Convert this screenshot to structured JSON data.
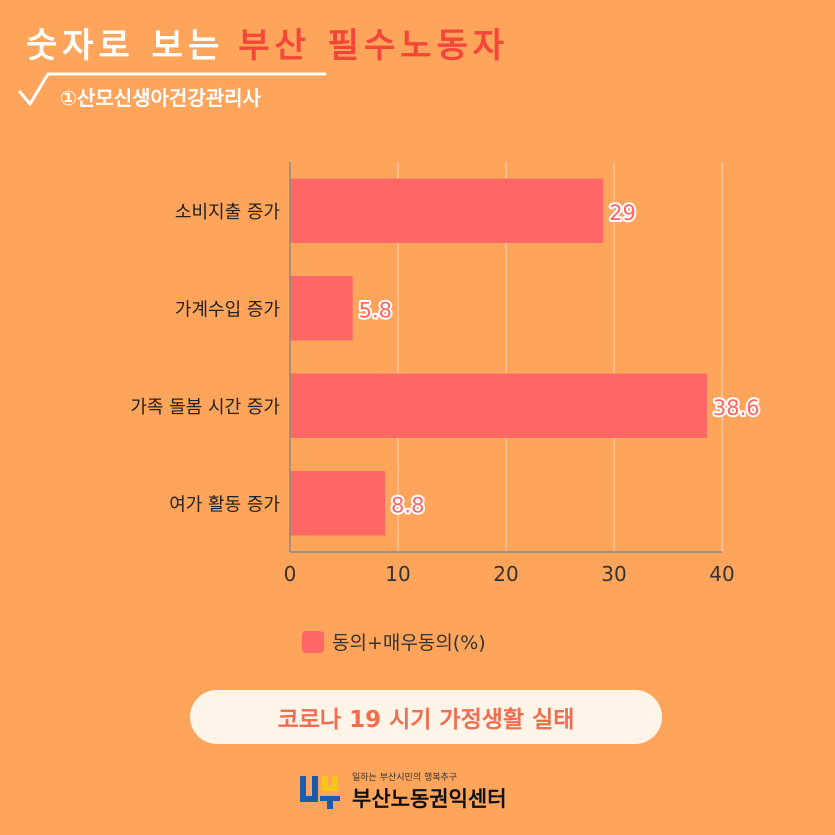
{
  "header": {
    "title_part1": "숫자로 보는",
    "title_part2": "부산 필수노동자",
    "subtitle": "①산모신생아건강관리사"
  },
  "colors": {
    "background": "#FFA45B",
    "bar": "#FF6666",
    "title_accent": "#F4473A",
    "pill_text": "#F26D4F"
  },
  "chart_data": {
    "type": "bar",
    "orientation": "horizontal",
    "categories": [
      "소비지출 증가",
      "가계수입 증가",
      "가족 돌봄 시간 증가",
      "여가 활동 증가"
    ],
    "series": [
      {
        "name": "동의+매우동의(%)",
        "values": [
          29,
          5.8,
          38.6,
          8.8
        ]
      }
    ],
    "data_labels": [
      "29",
      "5.8",
      "38.6",
      "8.8"
    ],
    "xlim": [
      0,
      40
    ],
    "xticks": [
      0,
      10,
      20,
      30,
      40
    ],
    "grid": true,
    "legend_position": "bottom"
  },
  "legend": {
    "label": "동의+매우동의(%)"
  },
  "footer": {
    "caption": "코로나 19 시기 가정생활 실태",
    "logo_slogan": "일하는 부산시민의 행복추구",
    "logo_name": "부산노동권익센터"
  }
}
